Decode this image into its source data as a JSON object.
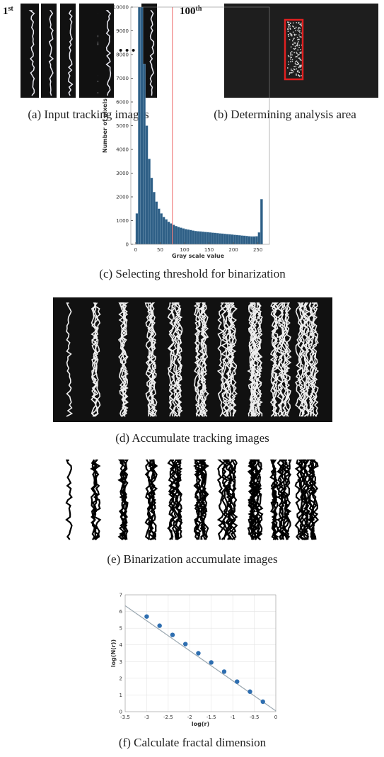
{
  "labels": {
    "first": {
      "base": "1",
      "sup": "st"
    },
    "last": {
      "base": "100",
      "sup": "th"
    },
    "ellipsis": "• • •"
  },
  "captions": {
    "a": "(a) Input tracking images",
    "b": "(b) Determining analysis area",
    "c": "(c) Selecting threshold for binarization",
    "d": "(d) Accumulate tracking images",
    "e": "(e) Binarization accumulate images",
    "f": "(f) Calculate fractal dimension"
  },
  "chart_data": [
    {
      "type": "histogram",
      "x_label": "Gray scale value",
      "y_label": "Number of pixels",
      "color": "#2e5f86",
      "bins": [
        0,
        5,
        10,
        15,
        20,
        25,
        30,
        35,
        40,
        45,
        50,
        55,
        60,
        65,
        70,
        75,
        80,
        85,
        90,
        95,
        100,
        105,
        110,
        115,
        120,
        125,
        130,
        135,
        140,
        145,
        150,
        155,
        160,
        165,
        170,
        175,
        180,
        185,
        190,
        195,
        200,
        205,
        210,
        215,
        220,
        225,
        230,
        235,
        240,
        245,
        250,
        255,
        260
      ],
      "values": [
        1300,
        10000,
        10000,
        7600,
        5000,
        3600,
        2800,
        2200,
        1800,
        1500,
        1300,
        1150,
        1050,
        950,
        880,
        820,
        770,
        730,
        700,
        670,
        640,
        620,
        600,
        580,
        560,
        550,
        540,
        530,
        520,
        510,
        500,
        490,
        480,
        470,
        460,
        450,
        440,
        430,
        420,
        410,
        400,
        390,
        380,
        370,
        360,
        350,
        340,
        330,
        330,
        340,
        500,
        1900
      ],
      "threshold": 75,
      "threshold_color": "#f08080",
      "xlim": [
        -10,
        265
      ],
      "xticks": [
        0,
        50,
        100,
        150,
        200,
        250
      ],
      "ylim": [
        0,
        10000
      ],
      "yticks": [
        0,
        1000,
        2000,
        3000,
        4000,
        5000,
        6000,
        7000,
        8000,
        9000,
        10000
      ],
      "grid": false
    },
    {
      "type": "scatter",
      "x_label": "log(r)",
      "y_label": "log(N(r))",
      "color": "#2e6eb0",
      "line_color": "#9aa7b0",
      "x": [
        -3,
        -2.7,
        -2.4,
        -2.1,
        -1.8,
        -1.5,
        -1.2,
        -0.9,
        -0.6,
        -0.3
      ],
      "values": [
        5.7,
        5.15,
        4.6,
        4.05,
        3.5,
        2.95,
        2.4,
        1.8,
        1.2,
        0.6
      ],
      "fit_line": {
        "x": [
          -3.5,
          0
        ],
        "y": [
          6.35,
          0.05
        ]
      },
      "xlim": [
        -3.5,
        0
      ],
      "xticks": [
        -3.5,
        -3,
        -2.5,
        -2,
        -1.5,
        -1,
        -0.5,
        0
      ],
      "ylim": [
        0,
        7
      ],
      "yticks": [
        0,
        1,
        2,
        3,
        4,
        5,
        6,
        7
      ],
      "grid": true
    }
  ]
}
